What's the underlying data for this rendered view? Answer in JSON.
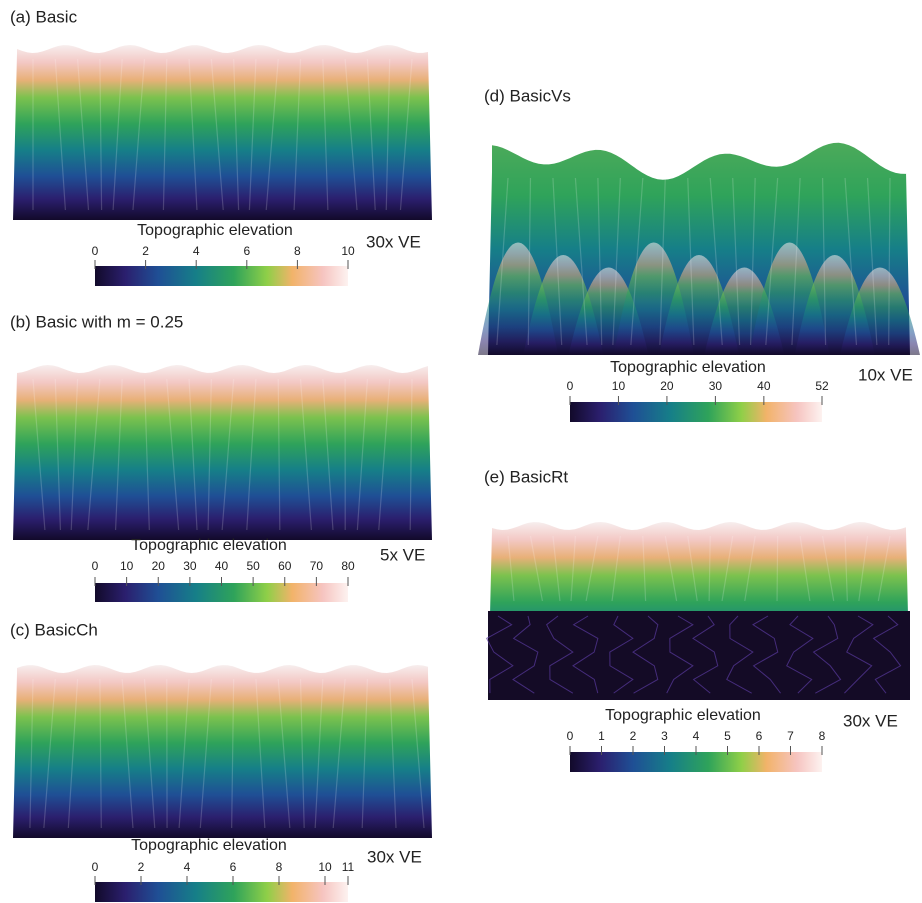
{
  "panels": [
    {
      "label": "(a) Basic",
      "colorbar": {
        "title": "Topographic elevation",
        "range": [
          0,
          10
        ],
        "ticks": [
          0,
          2,
          4,
          6,
          8,
          10
        ]
      },
      "ve": "30x VE"
    },
    {
      "label": "(b) Basic with m = 0.25",
      "colorbar": {
        "title": "Topographic elevation",
        "range": [
          0,
          80
        ],
        "ticks": [
          0,
          10,
          20,
          30,
          40,
          50,
          60,
          70,
          80
        ]
      },
      "ve": "5x VE"
    },
    {
      "label": "(c) BasicCh",
      "colorbar": {
        "title": "Topographic elevation",
        "range": [
          0,
          11
        ],
        "ticks": [
          0,
          2,
          4,
          6,
          8,
          10,
          11
        ]
      },
      "ve": "30x VE"
    },
    {
      "label": "(d) BasicVs",
      "colorbar": {
        "title": "Topographic elevation",
        "range": [
          0,
          52
        ],
        "ticks": [
          0,
          10,
          20,
          30,
          40,
          52
        ]
      },
      "ve": "10x VE"
    },
    {
      "label": "(e) BasicRt",
      "colorbar": {
        "title": "Topographic elevation",
        "range": [
          0,
          8
        ],
        "ticks": [
          0,
          1,
          2,
          3,
          4,
          5,
          6,
          7,
          8
        ]
      },
      "ve": "30x VE"
    }
  ]
}
